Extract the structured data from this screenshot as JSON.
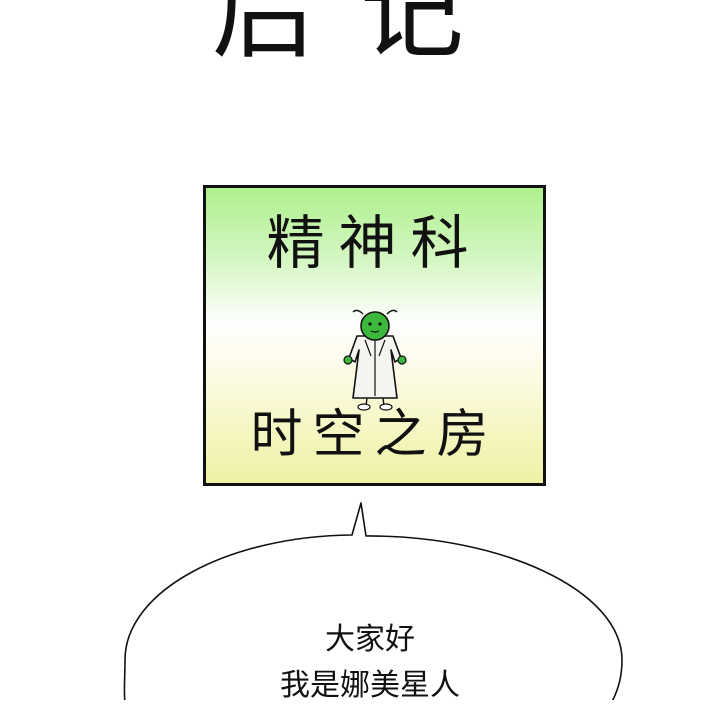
{
  "title": "后记",
  "sign": {
    "top_text": "精神科",
    "bottom_text": "时空之房",
    "colors": {
      "gradient_top": "#aef08e",
      "gradient_bottom": "#eef2a4",
      "figure_skin": "#3cb83c"
    }
  },
  "speech": {
    "lines": [
      "大家好",
      "我是娜美星人"
    ]
  }
}
